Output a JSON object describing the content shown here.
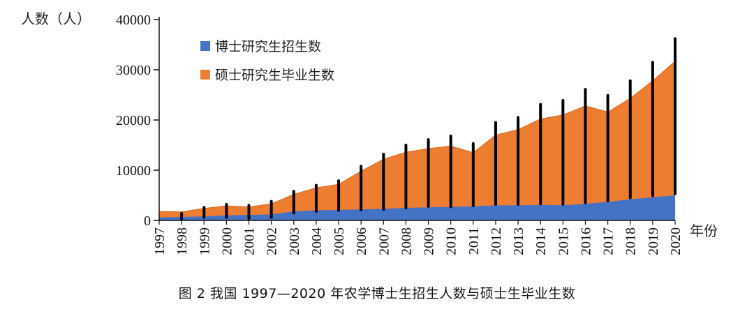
{
  "caption": "图 2   我国 1997—2020 年农学博士生招生人数与硕士生毕业生数",
  "chart_data": {
    "type": "area",
    "ylabel": "人数（人）",
    "xlabel": "年份",
    "ylim": [
      0,
      40000
    ],
    "yticks": [
      0,
      10000,
      20000,
      30000,
      40000
    ],
    "x": [
      "1997",
      "1998",
      "1999",
      "2000",
      "2001",
      "2002",
      "2003",
      "2004",
      "2005",
      "2006",
      "2007",
      "2008",
      "2009",
      "2010",
      "2011",
      "2012",
      "2013",
      "2014",
      "2015",
      "2016",
      "2017",
      "2018",
      "2019",
      "2020"
    ],
    "legend_position": "top-left",
    "series": [
      {
        "name": "博士研究生招生数",
        "color": "#4472c4",
        "values": [
          600,
          700,
          800,
          1000,
          1100,
          1200,
          1800,
          2000,
          2100,
          2200,
          2300,
          2500,
          2600,
          2700,
          2800,
          3000,
          3000,
          3100,
          3000,
          3300,
          3700,
          4200,
          4600,
          5000
        ]
      },
      {
        "name": "硕士研究生毕业生数",
        "color": "#ed7d31",
        "values": [
          1800,
          1700,
          2400,
          2900,
          2700,
          3300,
          5200,
          6500,
          7200,
          9800,
          12200,
          13600,
          14300,
          14800,
          13500,
          17000,
          18100,
          20200,
          21000,
          22800,
          21600,
          24300,
          27800,
          31700
        ]
      }
    ],
    "annotation_bars": {
      "color": "#000000",
      "from": [
        null,
        200,
        600,
        600,
        400,
        600,
        1500,
        1800,
        2000,
        2100,
        2200,
        2500,
        2800,
        2700,
        2900,
        3200,
        3200,
        3300,
        3200,
        3500,
        3900,
        4500,
        4900,
        5300
      ],
      "to": [
        null,
        1400,
        2600,
        3200,
        3000,
        3800,
        5800,
        7000,
        7900,
        10800,
        13200,
        15000,
        16100,
        16800,
        15300,
        19500,
        20500,
        23100,
        23900,
        26100,
        24900,
        27800,
        31500,
        36200
      ]
    }
  }
}
